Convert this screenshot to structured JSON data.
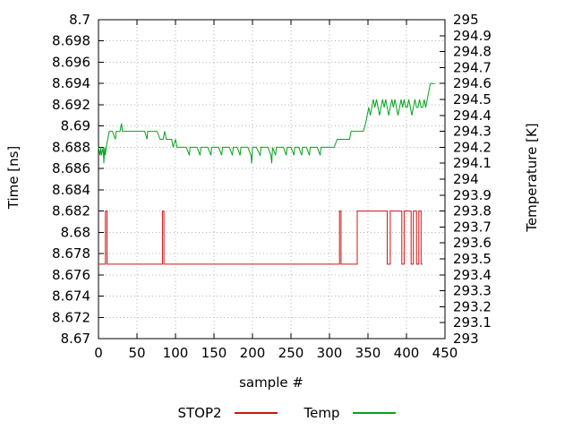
{
  "chart_data": {
    "type": "line",
    "title": "",
    "xlabel": "sample #",
    "ylabel_left": "Time [ns]",
    "ylabel_right": "Temperature [K]",
    "xlim": [
      0,
      450
    ],
    "y1lim": [
      8.67,
      8.7
    ],
    "y2lim": [
      293,
      295
    ],
    "x_ticks": [
      0,
      50,
      100,
      150,
      200,
      250,
      300,
      350,
      400,
      450
    ],
    "y1_ticks": [
      8.67,
      8.672,
      8.674,
      8.676,
      8.678,
      8.68,
      8.682,
      8.684,
      8.686,
      8.688,
      8.69,
      8.692,
      8.694,
      8.696,
      8.698,
      8.7
    ],
    "y2_ticks": [
      293,
      293.1,
      293.2,
      293.3,
      293.4,
      293.5,
      293.6,
      293.7,
      293.8,
      293.9,
      294,
      294.1,
      294.2,
      294.3,
      294.4,
      294.5,
      294.6,
      294.7,
      294.8,
      294.9,
      295
    ],
    "grid": true,
    "legend_position": "bottom-center",
    "series": [
      {
        "name": "STOP2",
        "axis": "left",
        "color": "#cc1414",
        "points": [
          [
            0,
            8.677
          ],
          [
            9,
            8.677
          ],
          [
            9,
            8.682
          ],
          [
            11,
            8.682
          ],
          [
            11,
            8.677
          ],
          [
            83,
            8.677
          ],
          [
            83,
            8.682
          ],
          [
            85,
            8.682
          ],
          [
            85,
            8.677
          ],
          [
            313,
            8.677
          ],
          [
            313,
            8.682
          ],
          [
            315,
            8.682
          ],
          [
            315,
            8.677
          ],
          [
            336,
            8.677
          ],
          [
            336,
            8.682
          ],
          [
            375,
            8.682
          ],
          [
            375,
            8.677
          ],
          [
            379,
            8.677
          ],
          [
            379,
            8.682
          ],
          [
            394,
            8.682
          ],
          [
            394,
            8.677
          ],
          [
            397,
            8.677
          ],
          [
            397,
            8.682
          ],
          [
            406,
            8.682
          ],
          [
            406,
            8.677
          ],
          [
            409,
            8.677
          ],
          [
            409,
            8.682
          ],
          [
            413,
            8.682
          ],
          [
            413,
            8.677
          ],
          [
            416,
            8.677
          ],
          [
            416,
            8.682
          ],
          [
            419,
            8.682
          ],
          [
            419,
            8.677
          ],
          [
            421,
            8.677
          ]
        ]
      },
      {
        "name": "Temp",
        "axis": "right",
        "color": "#00a51e",
        "points": [
          [
            0,
            294.2
          ],
          [
            2,
            294.15
          ],
          [
            3,
            294.2
          ],
          [
            4,
            294.15
          ],
          [
            6,
            294.2
          ],
          [
            7,
            294.1
          ],
          [
            8,
            294.2
          ],
          [
            9,
            294.15
          ],
          [
            10,
            294.2
          ],
          [
            12,
            294.25
          ],
          [
            14,
            294.3
          ],
          [
            18,
            294.3
          ],
          [
            22,
            294.25
          ],
          [
            23,
            294.3
          ],
          [
            28,
            294.3
          ],
          [
            30,
            294.35
          ],
          [
            31,
            294.3
          ],
          [
            36,
            294.3
          ],
          [
            40,
            294.3
          ],
          [
            44,
            294.3
          ],
          [
            48,
            294.3
          ],
          [
            52,
            294.3
          ],
          [
            56,
            294.3
          ],
          [
            60,
            294.3
          ],
          [
            63,
            294.25
          ],
          [
            64,
            294.3
          ],
          [
            68,
            294.3
          ],
          [
            72,
            294.3
          ],
          [
            76,
            294.3
          ],
          [
            80,
            294.25
          ],
          [
            84,
            294.25
          ],
          [
            86,
            294.3
          ],
          [
            88,
            294.25
          ],
          [
            92,
            294.25
          ],
          [
            95,
            294.25
          ],
          [
            97,
            294.2
          ],
          [
            100,
            294.25
          ],
          [
            102,
            294.2
          ],
          [
            106,
            294.2
          ],
          [
            110,
            294.2
          ],
          [
            114,
            294.2
          ],
          [
            118,
            294.15
          ],
          [
            119,
            294.2
          ],
          [
            124,
            294.2
          ],
          [
            128,
            294.2
          ],
          [
            132,
            294.15
          ],
          [
            133,
            294.2
          ],
          [
            138,
            294.2
          ],
          [
            142,
            294.2
          ],
          [
            146,
            294.15
          ],
          [
            147,
            294.2
          ],
          [
            152,
            294.2
          ],
          [
            156,
            294.2
          ],
          [
            160,
            294.15
          ],
          [
            161,
            294.2
          ],
          [
            166,
            294.2
          ],
          [
            170,
            294.2
          ],
          [
            174,
            294.15
          ],
          [
            175,
            294.2
          ],
          [
            180,
            294.2
          ],
          [
            184,
            294.15
          ],
          [
            185,
            294.2
          ],
          [
            190,
            294.2
          ],
          [
            194,
            294.2
          ],
          [
            198,
            294.15
          ],
          [
            199,
            294.1
          ],
          [
            200,
            294.2
          ],
          [
            205,
            294.2
          ],
          [
            210,
            294.15
          ],
          [
            211,
            294.2
          ],
          [
            216,
            294.2
          ],
          [
            220,
            294.2
          ],
          [
            224,
            294.15
          ],
          [
            225,
            294.1
          ],
          [
            226,
            294.2
          ],
          [
            230,
            294.15
          ],
          [
            231,
            294.2
          ],
          [
            236,
            294.2
          ],
          [
            240,
            294.2
          ],
          [
            244,
            294.15
          ],
          [
            245,
            294.2
          ],
          [
            250,
            294.2
          ],
          [
            254,
            294.15
          ],
          [
            255,
            294.2
          ],
          [
            260,
            294.2
          ],
          [
            264,
            294.15
          ],
          [
            265,
            294.2
          ],
          [
            270,
            294.2
          ],
          [
            274,
            294.15
          ],
          [
            275,
            294.2
          ],
          [
            280,
            294.2
          ],
          [
            284,
            294.2
          ],
          [
            288,
            294.15
          ],
          [
            289,
            294.2
          ],
          [
            294,
            294.2
          ],
          [
            298,
            294.2
          ],
          [
            302,
            294.2
          ],
          [
            306,
            294.2
          ],
          [
            310,
            294.25
          ],
          [
            314,
            294.25
          ],
          [
            318,
            294.25
          ],
          [
            322,
            294.25
          ],
          [
            326,
            294.25
          ],
          [
            328,
            294.3
          ],
          [
            332,
            294.3
          ],
          [
            336,
            294.3
          ],
          [
            340,
            294.3
          ],
          [
            344,
            294.3
          ],
          [
            347,
            294.35
          ],
          [
            349,
            294.4
          ],
          [
            351,
            294.45
          ],
          [
            353,
            294.4
          ],
          [
            355,
            294.45
          ],
          [
            357,
            294.5
          ],
          [
            359,
            294.45
          ],
          [
            361,
            294.5
          ],
          [
            363,
            294.45
          ],
          [
            365,
            294.4
          ],
          [
            367,
            294.45
          ],
          [
            369,
            294.5
          ],
          [
            371,
            294.45
          ],
          [
            373,
            294.5
          ],
          [
            375,
            294.45
          ],
          [
            377,
            294.4
          ],
          [
            379,
            294.45
          ],
          [
            381,
            294.5
          ],
          [
            383,
            294.45
          ],
          [
            385,
            294.5
          ],
          [
            387,
            294.45
          ],
          [
            389,
            294.4
          ],
          [
            391,
            294.45
          ],
          [
            393,
            294.5
          ],
          [
            395,
            294.45
          ],
          [
            397,
            294.5
          ],
          [
            399,
            294.45
          ],
          [
            401,
            294.45
          ],
          [
            403,
            294.5
          ],
          [
            405,
            294.45
          ],
          [
            407,
            294.4
          ],
          [
            409,
            294.45
          ],
          [
            411,
            294.5
          ],
          [
            413,
            294.45
          ],
          [
            415,
            294.45
          ],
          [
            417,
            294.5
          ],
          [
            419,
            294.45
          ],
          [
            421,
            294.45
          ],
          [
            423,
            294.5
          ],
          [
            425,
            294.45
          ],
          [
            427,
            294.5
          ],
          [
            429,
            294.55
          ],
          [
            431,
            294.6
          ],
          [
            434,
            294.6
          ],
          [
            437,
            294.6
          ]
        ]
      }
    ]
  }
}
